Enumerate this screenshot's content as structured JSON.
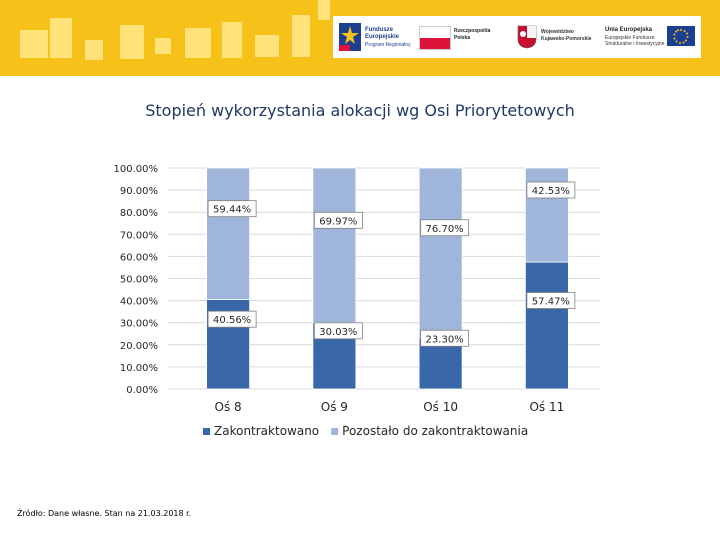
{
  "header": {
    "logos": [
      {
        "name": "fundusze-europejskie-logo",
        "line1": "Fundusze",
        "line2": "Europejskie",
        "line3": "Program Regionalny"
      },
      {
        "name": "rzeczpospolita-polska-logo",
        "line1": "Rzeczpospolita",
        "line2": "Polska"
      },
      {
        "name": "kujawsko-pomorskie-logo",
        "line1": "Województwo",
        "line2": "Kujawsko-Pomorskie"
      },
      {
        "name": "unia-europejska-logo",
        "line1": "Unia Europejska",
        "line2": "Europejskie Fundusze",
        "line3": "Strukturalne i Inwestycyjne"
      }
    ],
    "colors": {
      "banner": "#f6c21a",
      "banner_pattern": "#ffe27a",
      "eu_blue": "#1d3f8f",
      "poland_red": "#dc143c"
    }
  },
  "chart_data": {
    "type": "bar",
    "stacked": true,
    "title": "Stopień wykorzystania alokacji wg Osi Priorytetowych",
    "categories": [
      "Oś 8",
      "Oś 9",
      "Oś 10",
      "Oś 11"
    ],
    "series": [
      {
        "name": "Zakontraktowano",
        "color": "#3a67a8",
        "values": [
          40.56,
          30.03,
          23.3,
          57.47
        ],
        "labels": [
          "40.56%",
          "30.03%",
          "23.30%",
          "57.47%"
        ]
      },
      {
        "name": "Pozostało do zakontraktowania",
        "color": "#9fb6da",
        "values": [
          59.44,
          69.97,
          76.7,
          42.53
        ],
        "labels": [
          "59.44%",
          "69.97%",
          "76.70%",
          "42.53%"
        ]
      }
    ],
    "yticks": [
      "0.00%",
      "10.00%",
      "20.00%",
      "30.00%",
      "40.00%",
      "50.00%",
      "60.00%",
      "70.00%",
      "80.00%",
      "90.00%",
      "100.00%"
    ],
    "ylim": [
      0,
      100
    ],
    "grid": true,
    "legend_position": "bottom"
  },
  "footer": {
    "source": "Źródło: Dane własne. Stan na 21.03.2018 r."
  }
}
